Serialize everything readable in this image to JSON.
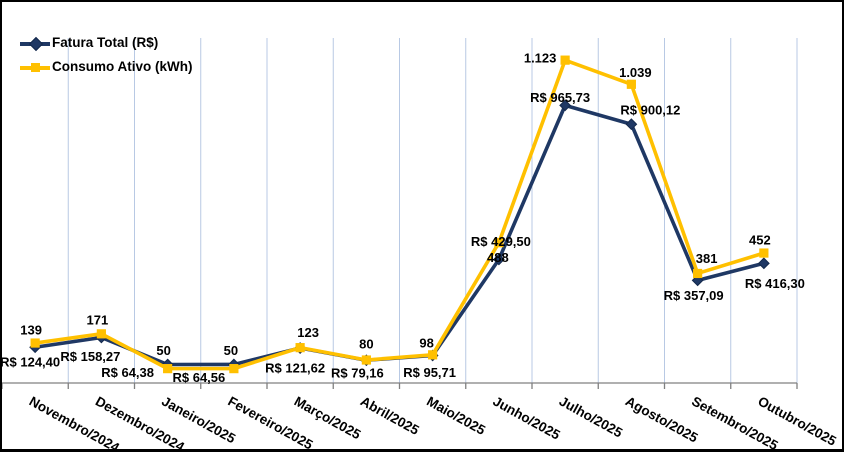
{
  "window": {
    "background": "#FFFFFF",
    "border_color": "#000000"
  },
  "legend": {
    "position": "top-left",
    "items": [
      {
        "label": "Fatura Total (R$)",
        "color": "#1F3864",
        "marker": "diamond"
      },
      {
        "label": "Consumo Ativo (kWh)",
        "color": "#FFC000",
        "marker": "square"
      }
    ]
  },
  "chart_data": {
    "type": "line",
    "title": "",
    "xlabel": "",
    "ylabel": "",
    "categories": [
      "Novembro/2024",
      "Dezembro/2024",
      "Janeiro/2025",
      "Fevereiro/2025",
      "Março/2025",
      "Abril/2025",
      "Maio/2025",
      "Junho/2025",
      "Julho/2025",
      "Agosto/2025",
      "Setembro/2025",
      "Outubro/2025"
    ],
    "series": [
      {
        "name": "Fatura Total (R$)",
        "color": "#1F3864",
        "marker": "diamond",
        "values": [
          124.4,
          158.27,
          64.38,
          64.56,
          121.62,
          79.16,
          95.71,
          429.5,
          965.73,
          900.12,
          357.09,
          416.3
        ],
        "labels": [
          "R$ 124,40",
          "R$ 158,27",
          "R$ 64,38",
          "R$ 64,56",
          "R$ 121,62",
          "R$ 79,16",
          "R$ 95,71",
          "R$ 429,50",
          "R$ 965,73",
          "R$ 900,12",
          "R$ 357,09",
          "R$ 416,30"
        ],
        "label_offsets": [
          [
            -5,
            15
          ],
          [
            -11,
            19
          ],
          [
            -40,
            8
          ],
          [
            -35,
            13
          ],
          [
            -5,
            20
          ],
          [
            -9,
            13
          ],
          [
            -3,
            17
          ],
          [
            2,
            -18
          ],
          [
            -5,
            -8
          ],
          [
            19,
            -14
          ],
          [
            -4,
            15
          ],
          [
            11,
            20
          ]
        ]
      },
      {
        "name": "Consumo Ativo (kWh)",
        "color": "#FFC000",
        "marker": "square",
        "values": [
          139,
          171,
          50,
          50,
          123,
          80,
          98,
          488,
          1123,
          1039,
          381,
          452
        ],
        "labels": [
          "139",
          "171",
          "50",
          "50",
          "123",
          "80",
          "98",
          "488",
          "1.123",
          "1.039",
          "381",
          "452"
        ],
        "label_offsets": [
          [
            -4,
            -13
          ],
          [
            -4,
            -14
          ],
          [
            -4,
            -18
          ],
          [
            -3,
            -18
          ],
          [
            8,
            -15
          ],
          [
            0,
            -16
          ],
          [
            -6,
            -12
          ],
          [
            -1,
            15
          ],
          [
            -25,
            -2
          ],
          [
            4,
            -12
          ],
          [
            9,
            -15
          ],
          [
            -4,
            -13
          ]
        ]
      }
    ],
    "ylim": [
      0,
      1200
    ],
    "grid": "vertical-only",
    "gridline_color": "#B8C9E4",
    "axis_color": "#808080",
    "label_color": "#000000",
    "legend_position": "top-left",
    "x_label_rotation_deg": 29
  }
}
